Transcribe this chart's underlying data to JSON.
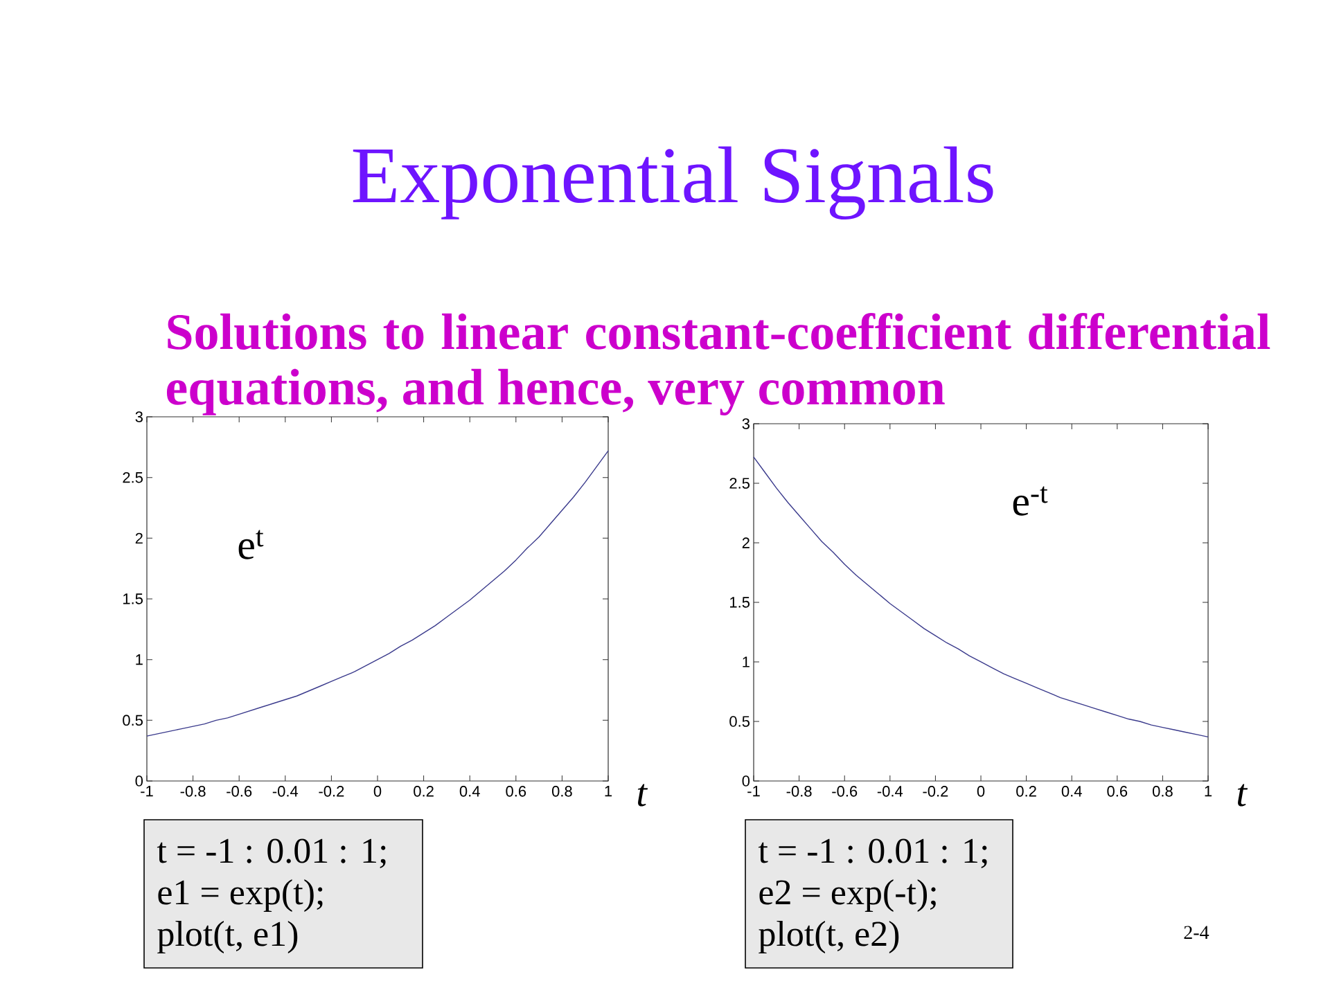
{
  "chart_data": [
    {
      "type": "line",
      "title": "Exponential Signals",
      "subtitle": "Solutions to linear constant-coefficient differential equations, and hence, very common",
      "xlabel": "t",
      "marker": "none",
      "x": [
        -1,
        -0.95,
        -0.9,
        -0.85,
        -0.8,
        -0.75,
        -0.7,
        -0.65,
        -0.6,
        -0.55,
        -0.5,
        -0.45,
        -0.4,
        -0.35,
        -0.3,
        -0.25,
        -0.2,
        -0.15,
        -0.1,
        -0.05,
        0,
        0.05,
        0.1,
        0.15,
        0.2,
        0.25,
        0.3,
        0.35,
        0.4,
        0.45,
        0.5,
        0.55,
        0.6,
        0.65,
        0.7,
        0.75,
        0.8,
        0.85,
        0.9,
        0.95,
        1
      ],
      "series": [
        {
          "name": "e$^{t}$",
          "color": "#3a3a8c",
          "values": [
            0.37,
            0.39,
            0.41,
            0.43,
            0.45,
            0.47,
            0.5,
            0.52,
            0.55,
            0.58,
            0.61,
            0.64,
            0.67,
            0.7,
            0.74,
            0.78,
            0.82,
            0.86,
            0.9,
            0.95,
            1.0,
            1.05,
            1.11,
            1.16,
            1.22,
            1.28,
            1.35,
            1.42,
            1.49,
            1.57,
            1.65,
            1.73,
            1.82,
            1.92,
            2.01,
            2.12,
            2.23,
            2.34,
            2.46,
            2.59,
            2.72
          ]
        }
      ],
      "xlim": [
        -1,
        1
      ],
      "ylim": [
        0,
        3
      ],
      "xticks": [
        -1,
        -0.8,
        -0.6,
        -0.4,
        -0.2,
        0,
        0.2,
        0.4,
        0.6,
        0.8,
        1
      ],
      "yticks": [
        0,
        0.5,
        1,
        1.5,
        2,
        2.5,
        3
      ],
      "annotations": [
        "t = -1 : 0.01 : 1;",
        "e1 = exp(t);",
        "plot(t, e1)"
      ]
    },
    {
      "type": "line",
      "xlabel": "t",
      "marker": "none",
      "x": [
        -1,
        -0.95,
        -0.9,
        -0.85,
        -0.8,
        -0.75,
        -0.7,
        -0.65,
        -0.6,
        -0.55,
        -0.5,
        -0.45,
        -0.4,
        -0.35,
        -0.3,
        -0.25,
        -0.2,
        -0.15,
        -0.1,
        -0.05,
        0,
        0.05,
        0.1,
        0.15,
        0.2,
        0.25,
        0.3,
        0.35,
        0.4,
        0.45,
        0.5,
        0.55,
        0.6,
        0.65,
        0.7,
        0.75,
        0.8,
        0.85,
        0.9,
        0.95,
        1
      ],
      "series": [
        {
          "name": "e$^{-t}$",
          "color": "#3a3a8c",
          "values": [
            2.72,
            2.59,
            2.46,
            2.34,
            2.23,
            2.12,
            2.01,
            1.92,
            1.82,
            1.73,
            1.65,
            1.57,
            1.49,
            1.42,
            1.35,
            1.28,
            1.22,
            1.16,
            1.11,
            1.05,
            1.0,
            0.95,
            0.9,
            0.86,
            0.82,
            0.78,
            0.74,
            0.7,
            0.67,
            0.64,
            0.61,
            0.58,
            0.55,
            0.52,
            0.5,
            0.47,
            0.45,
            0.43,
            0.41,
            0.39,
            0.37
          ]
        }
      ],
      "xlim": [
        -1,
        1
      ],
      "ylim": [
        0,
        3
      ],
      "xticks": [
        -1,
        -0.8,
        -0.6,
        -0.4,
        -0.2,
        0,
        0.2,
        0.4,
        0.6,
        0.8,
        1
      ],
      "yticks": [
        0,
        0.5,
        1,
        1.5,
        2,
        2.5,
        3
      ],
      "annotations": [
        "t = -1 : 0.01 : 1;",
        "e2 = exp(-t);",
        "plot(t, e2)",
        "2-4"
      ]
    }
  ]
}
